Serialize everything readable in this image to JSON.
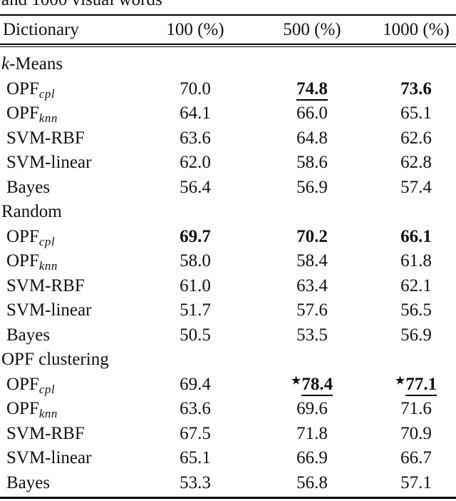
{
  "caption_fragment": "and 1000 visual words",
  "colors": {
    "text": "#111111",
    "background": "#ffffff",
    "rule": "#000000"
  },
  "star_glyph": "★",
  "table": {
    "header": {
      "col0": "Dictionary",
      "col1": "100 (%)",
      "col2": "500 (%)",
      "col3": "1000 (%)"
    },
    "sections": [
      {
        "label": {
          "italic_prefix": "k",
          "text": "-Means"
        },
        "rows": [
          {
            "method": {
              "base": "OPF",
              "sub": "cpl"
            },
            "cells": [
              {
                "text": "70.0",
                "bold": false,
                "underline": false,
                "star": false
              },
              {
                "text": "74.8",
                "bold": true,
                "underline": true,
                "star": false
              },
              {
                "text": "73.6",
                "bold": true,
                "underline": false,
                "star": false
              }
            ]
          },
          {
            "method": {
              "base": "OPF",
              "sub": "knn"
            },
            "cells": [
              {
                "text": "64.1",
                "bold": false,
                "underline": false,
                "star": false
              },
              {
                "text": "66.0",
                "bold": false,
                "underline": false,
                "star": false
              },
              {
                "text": "65.1",
                "bold": false,
                "underline": false,
                "star": false
              }
            ]
          },
          {
            "method": {
              "base": "SVM-RBF",
              "sub": ""
            },
            "cells": [
              {
                "text": "63.6",
                "bold": false,
                "underline": false,
                "star": false
              },
              {
                "text": "64.8",
                "bold": false,
                "underline": false,
                "star": false
              },
              {
                "text": "62.6",
                "bold": false,
                "underline": false,
                "star": false
              }
            ]
          },
          {
            "method": {
              "base": "SVM-linear",
              "sub": ""
            },
            "cells": [
              {
                "text": "62.0",
                "bold": false,
                "underline": false,
                "star": false
              },
              {
                "text": "58.6",
                "bold": false,
                "underline": false,
                "star": false
              },
              {
                "text": "62.8",
                "bold": false,
                "underline": false,
                "star": false
              }
            ]
          },
          {
            "method": {
              "base": "Bayes",
              "sub": ""
            },
            "cells": [
              {
                "text": "56.4",
                "bold": false,
                "underline": false,
                "star": false
              },
              {
                "text": "56.9",
                "bold": false,
                "underline": false,
                "star": false
              },
              {
                "text": "57.4",
                "bold": false,
                "underline": false,
                "star": false
              }
            ]
          }
        ]
      },
      {
        "label": {
          "italic_prefix": "",
          "text": "Random"
        },
        "rows": [
          {
            "method": {
              "base": "OPF",
              "sub": "cpl"
            },
            "cells": [
              {
                "text": "69.7",
                "bold": true,
                "underline": false,
                "star": false
              },
              {
                "text": "70.2",
                "bold": true,
                "underline": false,
                "star": false
              },
              {
                "text": "66.1",
                "bold": true,
                "underline": false,
                "star": false
              }
            ]
          },
          {
            "method": {
              "base": "OPF",
              "sub": "knn"
            },
            "cells": [
              {
                "text": "58.0",
                "bold": false,
                "underline": false,
                "star": false
              },
              {
                "text": "58.4",
                "bold": false,
                "underline": false,
                "star": false
              },
              {
                "text": "61.8",
                "bold": false,
                "underline": false,
                "star": false
              }
            ]
          },
          {
            "method": {
              "base": "SVM-RBF",
              "sub": ""
            },
            "cells": [
              {
                "text": "61.0",
                "bold": false,
                "underline": false,
                "star": false
              },
              {
                "text": "63.4",
                "bold": false,
                "underline": false,
                "star": false
              },
              {
                "text": "62.1",
                "bold": false,
                "underline": false,
                "star": false
              }
            ]
          },
          {
            "method": {
              "base": "SVM-linear",
              "sub": ""
            },
            "cells": [
              {
                "text": "51.7",
                "bold": false,
                "underline": false,
                "star": false
              },
              {
                "text": "57.6",
                "bold": false,
                "underline": false,
                "star": false
              },
              {
                "text": "56.5",
                "bold": false,
                "underline": false,
                "star": false
              }
            ]
          },
          {
            "method": {
              "base": "Bayes",
              "sub": ""
            },
            "cells": [
              {
                "text": "50.5",
                "bold": false,
                "underline": false,
                "star": false
              },
              {
                "text": "53.5",
                "bold": false,
                "underline": false,
                "star": false
              },
              {
                "text": "56.9",
                "bold": false,
                "underline": false,
                "star": false
              }
            ]
          }
        ]
      },
      {
        "label": {
          "italic_prefix": "",
          "text": "OPF clustering"
        },
        "rows": [
          {
            "method": {
              "base": "OPF",
              "sub": "cpl"
            },
            "cells": [
              {
                "text": "69.4",
                "bold": false,
                "underline": false,
                "star": false
              },
              {
                "text": "78.4",
                "bold": true,
                "underline": true,
                "star": true
              },
              {
                "text": "77.1",
                "bold": true,
                "underline": true,
                "star": true
              }
            ]
          },
          {
            "method": {
              "base": "OPF",
              "sub": "knn"
            },
            "cells": [
              {
                "text": "63.6",
                "bold": false,
                "underline": false,
                "star": false
              },
              {
                "text": "69.6",
                "bold": false,
                "underline": false,
                "star": false
              },
              {
                "text": "71.6",
                "bold": false,
                "underline": false,
                "star": false
              }
            ]
          },
          {
            "method": {
              "base": "SVM-RBF",
              "sub": ""
            },
            "cells": [
              {
                "text": "67.5",
                "bold": false,
                "underline": false,
                "star": false
              },
              {
                "text": "71.8",
                "bold": false,
                "underline": false,
                "star": false
              },
              {
                "text": "70.9",
                "bold": false,
                "underline": false,
                "star": false
              }
            ]
          },
          {
            "method": {
              "base": "SVM-linear",
              "sub": ""
            },
            "cells": [
              {
                "text": "65.1",
                "bold": false,
                "underline": false,
                "star": false
              },
              {
                "text": "66.9",
                "bold": false,
                "underline": false,
                "star": false
              },
              {
                "text": "66.7",
                "bold": false,
                "underline": false,
                "star": false
              }
            ]
          },
          {
            "method": {
              "base": "Bayes",
              "sub": ""
            },
            "cells": [
              {
                "text": "53.3",
                "bold": false,
                "underline": false,
                "star": false
              },
              {
                "text": "56.8",
                "bold": false,
                "underline": false,
                "star": false
              },
              {
                "text": "57.1",
                "bold": false,
                "underline": false,
                "star": false
              }
            ]
          }
        ]
      }
    ]
  }
}
